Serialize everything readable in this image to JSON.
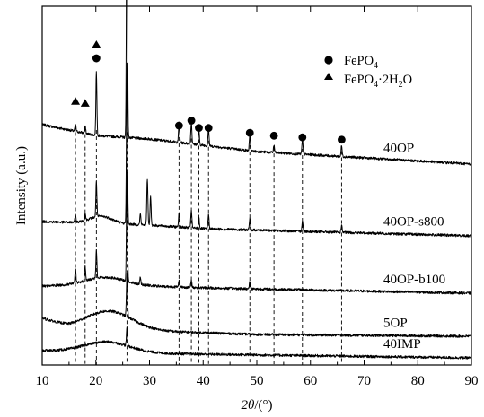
{
  "chart_data": {
    "type": "line",
    "xlabel_parts": {
      "symbol": "2θ",
      "unit": "/(°)"
    },
    "ylabel": "Intensity (a.u.)",
    "xlim": [
      10,
      90
    ],
    "x_ticks": [
      10,
      20,
      30,
      40,
      50,
      60,
      70,
      80,
      90
    ],
    "y_tick_labels": false,
    "grid": false,
    "legend": {
      "position": "top-right",
      "entries": [
        {
          "marker": "circle",
          "label_parts": [
            "FePO",
            "4",
            ""
          ]
        },
        {
          "marker": "triangle",
          "label_parts": [
            "FePO",
            "4",
            "·2H",
            "2",
            "O"
          ]
        }
      ]
    },
    "reference_lines_2theta": [
      16.2,
      18.0,
      20.1,
      25.8,
      35.5,
      37.8,
      39.2,
      41.0,
      48.7,
      53.2,
      58.5,
      65.8
    ],
    "phase_markers": [
      {
        "phase": "FePO4",
        "x": 20.1,
        "level": "low"
      },
      {
        "phase": "FePO4",
        "x": 25.8,
        "level": "top"
      },
      {
        "phase": "FePO4",
        "x": 35.5,
        "level": "mid"
      },
      {
        "phase": "FePO4",
        "x": 37.8,
        "level": "high"
      },
      {
        "phase": "FePO4",
        "x": 39.2,
        "level": "mid"
      },
      {
        "phase": "FePO4",
        "x": 41.0,
        "level": "mid2"
      },
      {
        "phase": "FePO4",
        "x": 48.7,
        "level": "mid2"
      },
      {
        "phase": "FePO4",
        "x": 53.2,
        "level": "mid"
      },
      {
        "phase": "FePO4",
        "x": 58.5,
        "level": "mid"
      },
      {
        "phase": "FePO4",
        "x": 65.8,
        "level": "mid"
      },
      {
        "phase": "FePO4·2H2O",
        "x": 16.2,
        "level": "low"
      },
      {
        "phase": "FePO4·2H2O",
        "x": 18.0,
        "level": "low"
      },
      {
        "phase": "FePO4·2H2O",
        "x": 20.1,
        "level": "top"
      }
    ],
    "series": [
      {
        "name": "40OP",
        "baseline": [
          [
            10,
            0.67
          ],
          [
            20,
            0.64
          ],
          [
            30,
            0.63
          ],
          [
            50,
            0.595
          ],
          [
            90,
            0.56
          ]
        ],
        "humps": [],
        "peaks": [
          [
            16.2,
            0.02
          ],
          [
            18.0,
            0.02
          ],
          [
            20.1,
            0.18
          ],
          [
            25.8,
            0.83
          ],
          [
            35.5,
            0.05
          ],
          [
            37.8,
            0.06
          ],
          [
            39.2,
            0.04
          ],
          [
            41.0,
            0.05
          ],
          [
            48.7,
            0.04
          ],
          [
            53.2,
            0.02
          ],
          [
            58.5,
            0.04
          ],
          [
            65.8,
            0.03
          ]
        ]
      },
      {
        "name": "40OP-s800",
        "baseline": [
          [
            10,
            0.4
          ],
          [
            20,
            0.395
          ],
          [
            30,
            0.39
          ],
          [
            40,
            0.38
          ],
          [
            90,
            0.36
          ]
        ],
        "humps": [
          [
            21,
            3,
            0.02
          ]
        ],
        "peaks": [
          [
            16.2,
            0.02
          ],
          [
            18.0,
            0.02
          ],
          [
            20.1,
            0.1
          ],
          [
            25.8,
            0.45
          ],
          [
            28.3,
            0.03
          ],
          [
            29.6,
            0.13
          ],
          [
            30.2,
            0.08
          ],
          [
            35.5,
            0.04
          ],
          [
            37.8,
            0.05
          ],
          [
            39.2,
            0.03
          ],
          [
            41.0,
            0.04
          ],
          [
            48.7,
            0.03
          ],
          [
            58.5,
            0.03
          ],
          [
            65.8,
            0.02
          ]
        ]
      },
      {
        "name": "40OP-b100",
        "baseline": [
          [
            10,
            0.22
          ],
          [
            20,
            0.225
          ],
          [
            30,
            0.22
          ],
          [
            40,
            0.215
          ],
          [
            90,
            0.2
          ]
        ],
        "humps": [
          [
            22,
            5,
            0.02
          ]
        ],
        "peaks": [
          [
            16.2,
            0.04
          ],
          [
            18.0,
            0.04
          ],
          [
            20.1,
            0.08
          ],
          [
            25.8,
            0.3
          ],
          [
            28.3,
            0.02
          ],
          [
            35.5,
            0.02
          ],
          [
            37.8,
            0.02
          ],
          [
            48.7,
            0.02
          ]
        ]
      },
      {
        "name": "5OP",
        "baseline": [
          [
            10,
            0.13
          ],
          [
            15,
            0.105
          ],
          [
            30,
            0.095
          ],
          [
            50,
            0.085
          ],
          [
            90,
            0.08
          ]
        ],
        "humps": [
          [
            22.5,
            6,
            0.05
          ]
        ],
        "peaks": [
          [
            25.8,
            0.12
          ]
        ]
      },
      {
        "name": "40IMP",
        "baseline": [
          [
            10,
            0.04
          ],
          [
            20,
            0.035
          ],
          [
            40,
            0.03
          ],
          [
            90,
            0.02
          ]
        ],
        "humps": [
          [
            22,
            6,
            0.03
          ]
        ],
        "peaks": [
          [
            25.8,
            0.05
          ]
        ]
      }
    ]
  }
}
